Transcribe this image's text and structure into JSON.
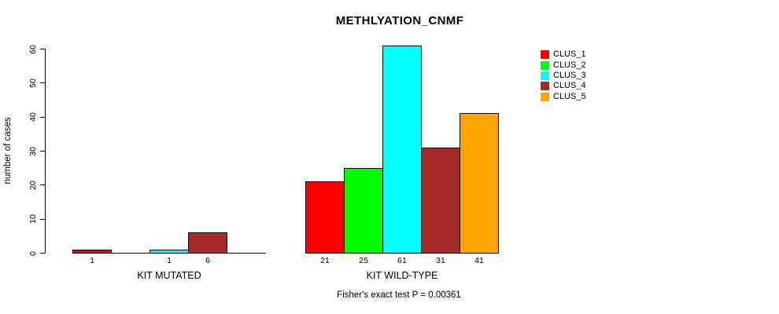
{
  "chart_data": {
    "type": "bar",
    "title": "METHLYATION_CNMF",
    "ylabel": "number of cases",
    "xlabel": "",
    "ylim": [
      0,
      60
    ],
    "yticks": [
      0,
      10,
      20,
      30,
      40,
      50,
      60
    ],
    "grid": false,
    "legend_position": "right",
    "series_names": [
      "CLUS_1",
      "CLUS_2",
      "CLUS_3",
      "CLUS_4",
      "CLUS_5"
    ],
    "colors": [
      "#FF0000",
      "#00FF00",
      "#00FFFF",
      "#A52A2A",
      "#FFA500"
    ],
    "groups": [
      {
        "label": "KIT MUTATED",
        "values": [
          1,
          0,
          1,
          6,
          0
        ],
        "bar_labels": [
          "1",
          "",
          "1",
          "6",
          ""
        ]
      },
      {
        "label": "KIT WILD-TYPE",
        "values": [
          21,
          25,
          61,
          31,
          41
        ],
        "bar_labels": [
          "21",
          "25",
          "61",
          "31",
          "41"
        ]
      }
    ],
    "annotation": "Fisher's exact test P = 0.00361"
  },
  "legend": {
    "items": [
      {
        "label": "CLUS_1",
        "color": "#FF0000"
      },
      {
        "label": "CLUS_2",
        "color": "#00FF00"
      },
      {
        "label": "CLUS_3",
        "color": "#00FFFF"
      },
      {
        "label": "CLUS_4",
        "color": "#A52A2A"
      },
      {
        "label": "CLUS_5",
        "color": "#FFA500"
      }
    ]
  }
}
